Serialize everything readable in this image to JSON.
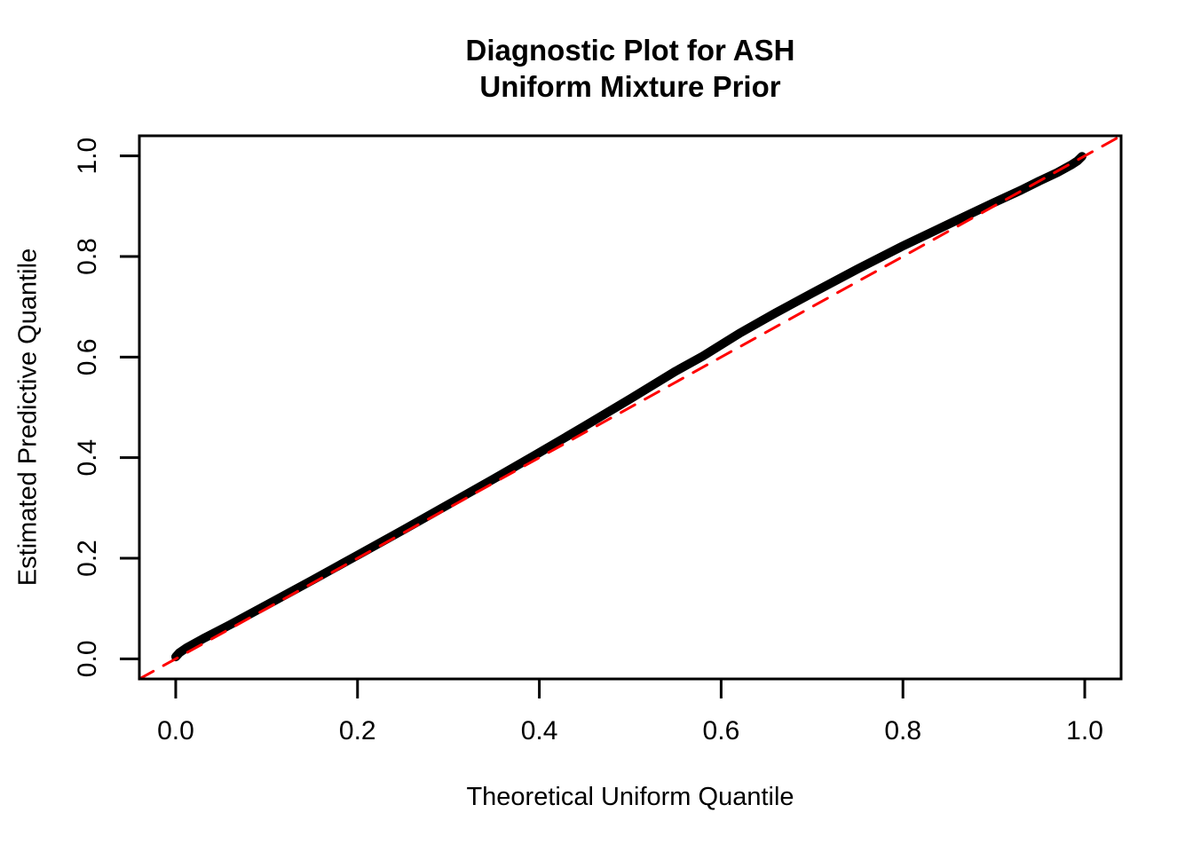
{
  "chart_data": {
    "type": "line",
    "title": "Diagnostic Plot for ASH",
    "subtitle": "Uniform Mixture Prior",
    "xlabel": "Theoretical Uniform Quantile",
    "ylabel": "Estimated Predictive Quantile",
    "xlim": [
      -0.04,
      1.04
    ],
    "ylim": [
      -0.04,
      1.04
    ],
    "grid": false,
    "legend": "none",
    "x_ticks": {
      "values": [
        0.0,
        0.2,
        0.4,
        0.6,
        0.8,
        1.0
      ],
      "labels": [
        "0.0",
        "0.2",
        "0.4",
        "0.6",
        "0.8",
        "1.0"
      ]
    },
    "y_ticks": {
      "values": [
        0.0,
        0.2,
        0.4,
        0.6,
        0.8,
        1.0
      ],
      "labels": [
        "0.0",
        "0.2",
        "0.4",
        "0.6",
        "0.8",
        "1.0"
      ]
    },
    "series": [
      {
        "name": "ash-estimated-predictive-quantiles",
        "type": "line",
        "color": "#000000",
        "line_width": 10,
        "dash": null,
        "points": [
          [
            0.0,
            0.004
          ],
          [
            0.004,
            0.012
          ],
          [
            0.012,
            0.022
          ],
          [
            0.03,
            0.04
          ],
          [
            0.06,
            0.068
          ],
          [
            0.1,
            0.107
          ],
          [
            0.15,
            0.156
          ],
          [
            0.2,
            0.206
          ],
          [
            0.25,
            0.256
          ],
          [
            0.3,
            0.307
          ],
          [
            0.35,
            0.358
          ],
          [
            0.4,
            0.41
          ],
          [
            0.45,
            0.463
          ],
          [
            0.5,
            0.517
          ],
          [
            0.55,
            0.572
          ],
          [
            0.58,
            0.602
          ],
          [
            0.62,
            0.647
          ],
          [
            0.66,
            0.688
          ],
          [
            0.7,
            0.727
          ],
          [
            0.75,
            0.775
          ],
          [
            0.8,
            0.821
          ],
          [
            0.85,
            0.864
          ],
          [
            0.9,
            0.907
          ],
          [
            0.93,
            0.932
          ],
          [
            0.95,
            0.95
          ],
          [
            0.97,
            0.967
          ],
          [
            0.985,
            0.982
          ],
          [
            0.992,
            0.99
          ],
          [
            0.997,
            0.999
          ]
        ]
      },
      {
        "name": "identity-reference-line",
        "type": "line",
        "color": "#FF0000",
        "line_width": 3,
        "dash": [
          18,
          13
        ],
        "points": [
          [
            -0.04,
            -0.04
          ],
          [
            1.04,
            1.04
          ]
        ]
      }
    ]
  },
  "colors": {
    "background": "#FFFFFF",
    "axis": "#000000",
    "curve": "#000000",
    "reference": "#FF0000"
  }
}
